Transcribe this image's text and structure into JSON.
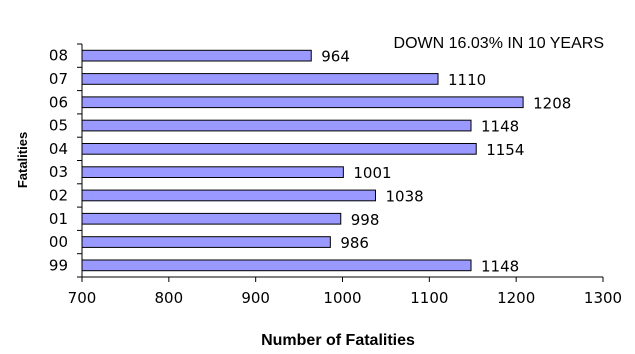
{
  "chart_data": {
    "type": "bar",
    "orientation": "horizontal",
    "title": "DOWN 16.03% IN 10 YEARS",
    "xlabel": "Number of Fatalities",
    "ylabel": "Fatalities",
    "categories": [
      "08",
      "07",
      "06",
      "05",
      "04",
      "03",
      "02",
      "01",
      "00",
      "99"
    ],
    "values": [
      964,
      1110,
      1208,
      1148,
      1154,
      1001,
      1038,
      998,
      986,
      1148
    ],
    "data_labels": [
      "964",
      "1110",
      "1208",
      "1148",
      "1154",
      "1001",
      "1038",
      "998",
      "986",
      "1148"
    ],
    "xlim": [
      700,
      1300
    ],
    "xticks": [
      "700",
      "800",
      "900",
      "1000",
      "1100",
      "1200",
      "1300"
    ],
    "bar_color": "#9999ff",
    "bar_edge_color": "#000000",
    "grid": false,
    "legend": "none"
  }
}
